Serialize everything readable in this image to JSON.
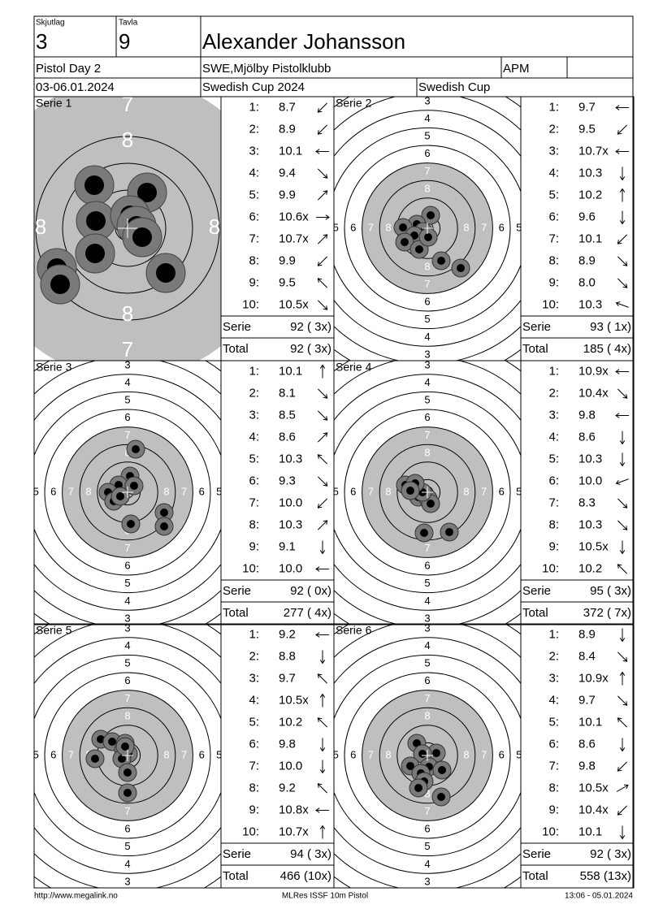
{
  "header": {
    "squad_label": "Skjutlag",
    "squad": "3",
    "target_label": "Tavla",
    "target": "9",
    "name": "Alexander Johansson",
    "event": "Pistol Day 2",
    "club": "SWE,Mjölby Pistolklubb",
    "class": "APM",
    "dates": "03-06.01.2024",
    "competition": "Swedish Cup 2024",
    "cup": "Swedish Cup"
  },
  "ring_labels": [
    "3",
    "4",
    "5",
    "6",
    "7",
    "8"
  ],
  "series": [
    {
      "title": "Serie 1",
      "shots": [
        {
          "number": "1:",
          "score": "8.7"
        },
        {
          "number": "2:",
          "score": "8.9"
        },
        {
          "number": "3:",
          "score": "10.1"
        },
        {
          "number": "4:",
          "score": "9.4"
        },
        {
          "number": "5:",
          "score": "9.9"
        },
        {
          "number": "6:",
          "score": "10.6x"
        },
        {
          "number": "7:",
          "score": "10.7x"
        },
        {
          "number": "8:",
          "score": "9.9"
        },
        {
          "number": "9:",
          "score": "9.5"
        },
        {
          "number": "10:",
          "score": "10.5x"
        }
      ],
      "serie_label": "Serie",
      "serie_score": "92 ( 3x)",
      "total_label": "Total",
      "total_score": "92 ( 3x)"
    },
    {
      "title": "Serie 2",
      "shots": [
        {
          "number": "1:",
          "score": "9.7"
        },
        {
          "number": "2:",
          "score": "9.5"
        },
        {
          "number": "3:",
          "score": "10.7x"
        },
        {
          "number": "4:",
          "score": "10.3"
        },
        {
          "number": "5:",
          "score": "10.2"
        },
        {
          "number": "6:",
          "score": "9.6"
        },
        {
          "number": "7:",
          "score": "10.1"
        },
        {
          "number": "8:",
          "score": "8.9"
        },
        {
          "number": "9:",
          "score": "8.0"
        },
        {
          "number": "10:",
          "score": "10.3"
        }
      ],
      "serie_label": "Serie",
      "serie_score": "93 ( 1x)",
      "total_label": "Total",
      "total_score": "185 ( 4x)"
    },
    {
      "title": "Serie 3",
      "shots": [
        {
          "number": "1:",
          "score": "10.1"
        },
        {
          "number": "2:",
          "score": "8.1"
        },
        {
          "number": "3:",
          "score": "8.5"
        },
        {
          "number": "4:",
          "score": "8.6"
        },
        {
          "number": "5:",
          "score": "10.3"
        },
        {
          "number": "6:",
          "score": "9.3"
        },
        {
          "number": "7:",
          "score": "10.0"
        },
        {
          "number": "8:",
          "score": "10.3"
        },
        {
          "number": "9:",
          "score": "9.1"
        },
        {
          "number": "10:",
          "score": "10.0"
        }
      ],
      "serie_label": "Serie",
      "serie_score": "92 ( 0x)",
      "total_label": "Total",
      "total_score": "277 ( 4x)"
    },
    {
      "title": "Serie 4",
      "shots": [
        {
          "number": "1:",
          "score": "10.9x"
        },
        {
          "number": "2:",
          "score": "10.4x"
        },
        {
          "number": "3:",
          "score": "9.8"
        },
        {
          "number": "4:",
          "score": "8.6"
        },
        {
          "number": "5:",
          "score": "10.3"
        },
        {
          "number": "6:",
          "score": "10.0"
        },
        {
          "number": "7:",
          "score": "8.3"
        },
        {
          "number": "8:",
          "score": "10.3"
        },
        {
          "number": "9:",
          "score": "10.5x"
        },
        {
          "number": "10:",
          "score": "10.2"
        }
      ],
      "serie_label": "Serie",
      "serie_score": "95 ( 3x)",
      "total_label": "Total",
      "total_score": "372 ( 7x)"
    },
    {
      "title": "Serie 5",
      "shots": [
        {
          "number": "1:",
          "score": "9.2"
        },
        {
          "number": "2:",
          "score": "8.8"
        },
        {
          "number": "3:",
          "score": "9.7"
        },
        {
          "number": "4:",
          "score": "10.5x"
        },
        {
          "number": "5:",
          "score": "10.2"
        },
        {
          "number": "6:",
          "score": "9.8"
        },
        {
          "number": "7:",
          "score": "10.0"
        },
        {
          "number": "8:",
          "score": "9.2"
        },
        {
          "number": "9:",
          "score": "10.8x"
        },
        {
          "number": "10:",
          "score": "10.7x"
        }
      ],
      "serie_label": "Serie",
      "serie_score": "94 ( 3x)",
      "total_label": "Total",
      "total_score": "466 (10x)"
    },
    {
      "title": "Serie 6",
      "shots": [
        {
          "number": "1:",
          "score": "8.9"
        },
        {
          "number": "2:",
          "score": "8.4"
        },
        {
          "number": "3:",
          "score": "10.9x"
        },
        {
          "number": "4:",
          "score": "9.7"
        },
        {
          "number": "5:",
          "score": "10.1"
        },
        {
          "number": "6:",
          "score": "8.6"
        },
        {
          "number": "7:",
          "score": "9.8"
        },
        {
          "number": "8:",
          "score": "10.5x"
        },
        {
          "number": "9:",
          "score": "10.4x"
        },
        {
          "number": "10:",
          "score": "10.1"
        }
      ],
      "serie_label": "Serie",
      "serie_score": "92 ( 3x)",
      "total_label": "Total",
      "total_score": "558 (13x)"
    }
  ],
  "footer": {
    "url": "http://www.megalink.no",
    "software": "MLRes ISSF 10m Pistol",
    "timestamp": "13:06 - 05.01.2024"
  }
}
